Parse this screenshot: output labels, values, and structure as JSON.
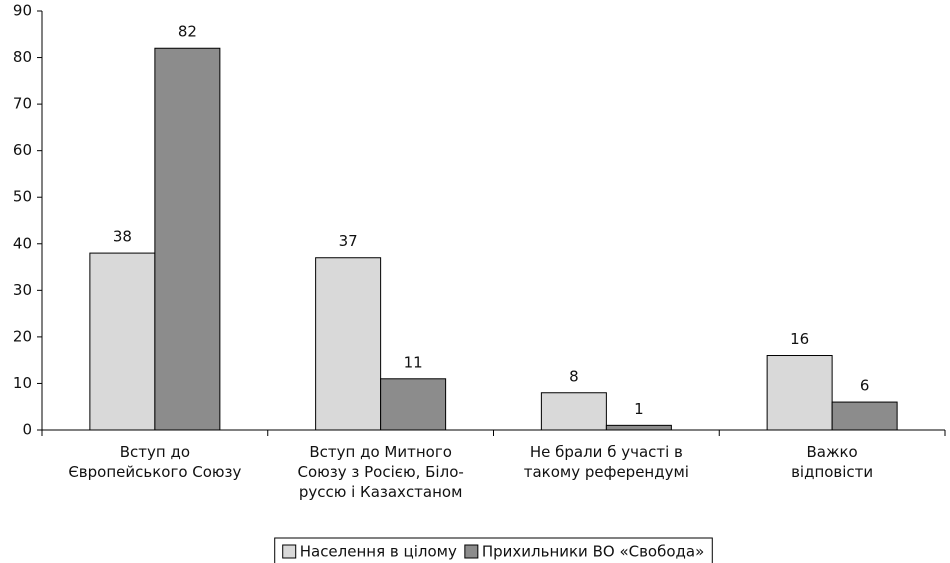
{
  "chart_data": {
    "type": "bar",
    "categories": [
      "Вступ до\nЄвропейського Союзу",
      "Вступ до Митного\nСоюзу з Росією, Біло-\nруссю і Казахстаном",
      "Не брали б участі в\nтакому референдумі",
      "Важко\nвідповісти"
    ],
    "series": [
      {
        "name": "Населення в цілому",
        "color": "#d9d9d9",
        "values": [
          38,
          37,
          8,
          16
        ]
      },
      {
        "name": "Прихильники ВО «Свобода»",
        "color": "#8c8c8c",
        "values": [
          82,
          11,
          1,
          6
        ]
      }
    ],
    "ylim": [
      0,
      90
    ],
    "yticks": [
      0,
      10,
      20,
      30,
      40,
      50,
      60,
      70,
      80,
      90
    ],
    "grid": false,
    "legend": "bottom"
  }
}
